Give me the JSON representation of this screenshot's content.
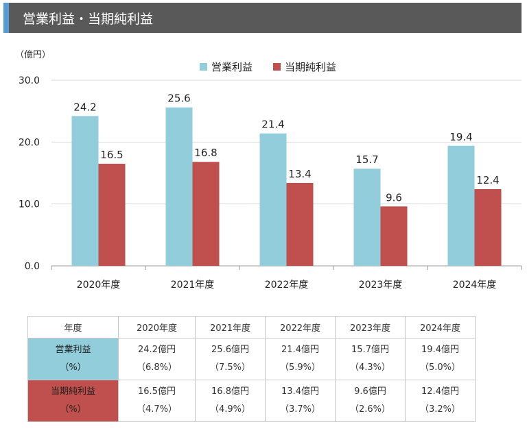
{
  "header": {
    "title": "営業利益・当期純利益"
  },
  "chart_data": {
    "type": "bar",
    "unit_label": "（億円）",
    "categories": [
      "2020年度",
      "2021年度",
      "2022年度",
      "2023年度",
      "2024年度"
    ],
    "series": [
      {
        "name": "営業利益",
        "color": "#92cddc",
        "values": [
          24.2,
          25.6,
          21.4,
          15.7,
          19.4
        ]
      },
      {
        "name": "当期純利益",
        "color": "#c0504d",
        "values": [
          16.5,
          16.8,
          13.4,
          9.6,
          12.4
        ]
      }
    ],
    "ylim": [
      0,
      30
    ],
    "yticks": [
      "0.0",
      "10.0",
      "20.0",
      "30.0"
    ],
    "legend": "top-center",
    "grid": true
  },
  "table": {
    "header_label": "年度",
    "years": [
      "2020年度",
      "2021年度",
      "2022年度",
      "2023年度",
      "2024年度"
    ],
    "rows": [
      {
        "label": "営業利益",
        "sublabel": "（%）",
        "amounts": [
          "24.2億円",
          "25.6億円",
          "21.4億円",
          "15.7億円",
          "19.4億円"
        ],
        "ratios": [
          "（6.8%）",
          "（7.5%）",
          "（5.9%）",
          "（4.3%）",
          "（5.0%）"
        ]
      },
      {
        "label": "当期純利益",
        "sublabel": "（%）",
        "amounts": [
          "16.5億円",
          "16.8億円",
          "13.4億円",
          "9.6億円",
          "12.4億円"
        ],
        "ratios": [
          "（4.7%）",
          "（4.9%）",
          "（3.7%）",
          "（2.6%）",
          "（3.2%）"
        ]
      }
    ]
  }
}
